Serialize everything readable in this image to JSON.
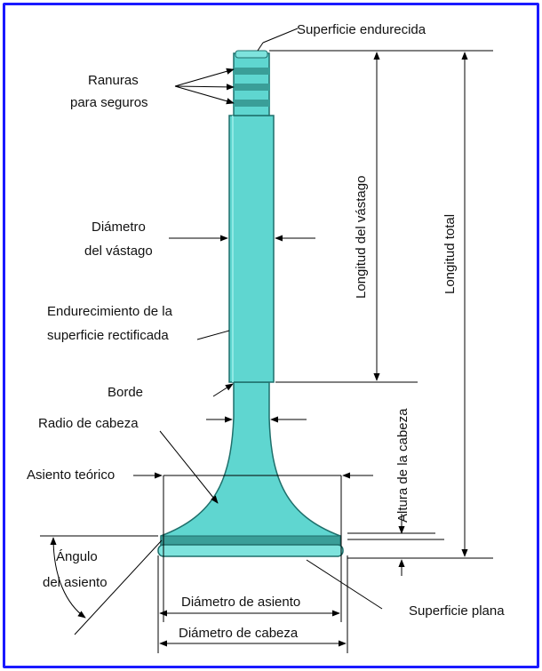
{
  "colors": {
    "frame": "#1a1aff",
    "valve_fill": "#5fd6d0",
    "valve_dark": "#2e8f8a",
    "valve_band": "#3a9e98",
    "line": "#000000"
  },
  "labels": {
    "superficie_endurecida": "Superficie endurecida",
    "ranuras_1": "Ranuras",
    "ranuras_2": "para seguros",
    "diametro_vastago_1": "Diámetro",
    "diametro_vastago_2": "del vástago",
    "endurecimiento_1": "Endurecimiento de la",
    "endurecimiento_2": "superficie rectificada",
    "borde": "Borde",
    "radio_cabeza": "Radio de cabeza",
    "asiento_teorico": "Asiento teórico",
    "angulo_1": "Ángulo",
    "angulo_2": "del asiento",
    "diametro_asiento": "Diámetro de asiento",
    "diametro_cabeza": "Diámetro de cabeza",
    "superficie_plana": "Superficie plana",
    "longitud_vastago": "Longitud del vástago",
    "longitud_total": "Longitud total",
    "altura_cabeza": "Altura de la cabeza"
  }
}
